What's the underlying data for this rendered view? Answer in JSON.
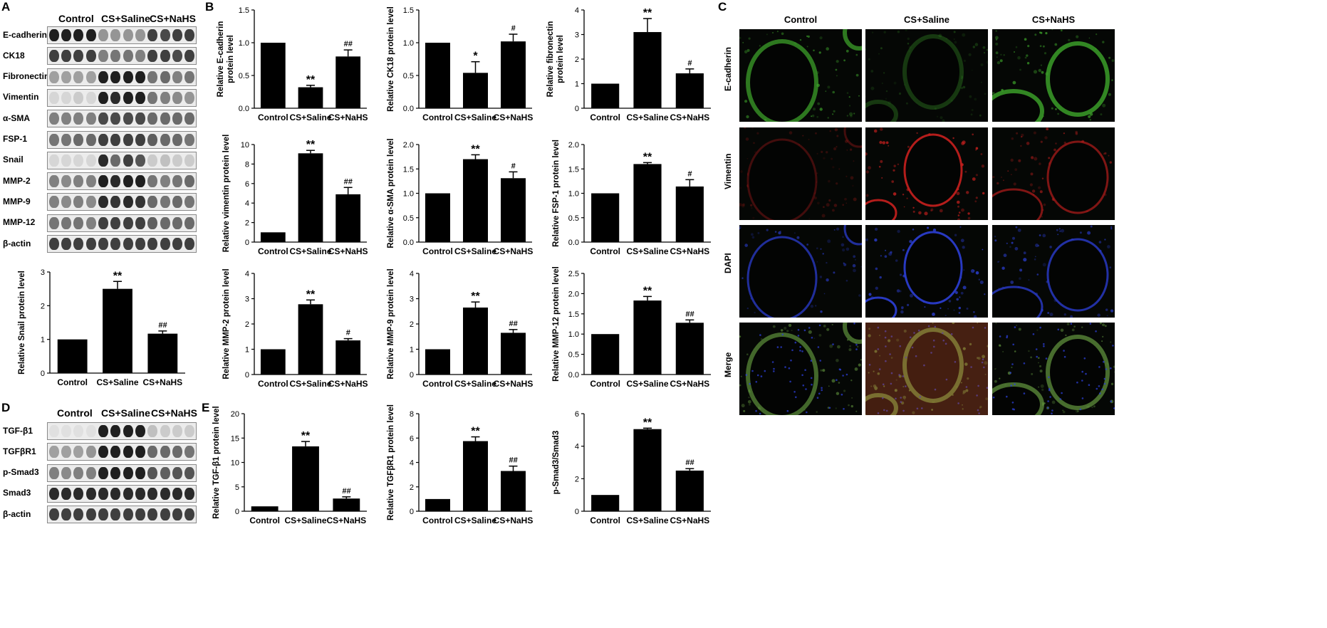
{
  "panels": {
    "A": "A",
    "B": "B",
    "C": "C",
    "D": "D",
    "E": "E"
  },
  "groups": [
    "Control",
    "CS+Saline",
    "CS+NaHS"
  ],
  "blotA": {
    "rows": [
      {
        "label": "E-cadherin",
        "pattern": [
          0.95,
          0.95,
          0.95,
          0.95,
          0.4,
          0.4,
          0.4,
          0.4,
          0.8,
          0.75,
          0.8,
          0.8
        ]
      },
      {
        "label": "CK18",
        "pattern": [
          0.8,
          0.8,
          0.8,
          0.8,
          0.5,
          0.55,
          0.55,
          0.5,
          0.8,
          0.8,
          0.75,
          0.8
        ]
      },
      {
        "label": "Fibronectin",
        "pattern": [
          0.35,
          0.35,
          0.35,
          0.35,
          0.95,
          0.95,
          0.95,
          0.95,
          0.55,
          0.6,
          0.5,
          0.55
        ]
      },
      {
        "label": "Vimentin",
        "pattern": [
          0.1,
          0.1,
          0.15,
          0.1,
          0.95,
          0.9,
          0.95,
          0.95,
          0.55,
          0.5,
          0.45,
          0.4
        ]
      },
      {
        "label": "α-SMA",
        "pattern": [
          0.5,
          0.5,
          0.5,
          0.5,
          0.75,
          0.75,
          0.75,
          0.75,
          0.6,
          0.6,
          0.6,
          0.6
        ]
      },
      {
        "label": "FSP-1",
        "pattern": [
          0.55,
          0.55,
          0.6,
          0.6,
          0.8,
          0.8,
          0.8,
          0.8,
          0.65,
          0.6,
          0.6,
          0.55
        ]
      },
      {
        "label": "Snail",
        "pattern": [
          0.1,
          0.1,
          0.1,
          0.1,
          0.9,
          0.6,
          0.8,
          0.7,
          0.15,
          0.2,
          0.15,
          0.15
        ]
      },
      {
        "label": "MMP-2",
        "pattern": [
          0.5,
          0.45,
          0.5,
          0.5,
          0.95,
          0.9,
          0.95,
          0.95,
          0.55,
          0.5,
          0.55,
          0.6
        ]
      },
      {
        "label": "MMP-9",
        "pattern": [
          0.5,
          0.45,
          0.5,
          0.45,
          0.9,
          0.85,
          0.9,
          0.85,
          0.6,
          0.55,
          0.6,
          0.55
        ]
      },
      {
        "label": "MMP-12",
        "pattern": [
          0.55,
          0.55,
          0.55,
          0.5,
          0.8,
          0.8,
          0.8,
          0.8,
          0.65,
          0.6,
          0.6,
          0.6
        ]
      },
      {
        "label": "β-actin",
        "pattern": [
          0.8,
          0.8,
          0.8,
          0.8,
          0.8,
          0.8,
          0.8,
          0.8,
          0.8,
          0.8,
          0.8,
          0.8
        ]
      }
    ]
  },
  "blotD": {
    "rows": [
      {
        "label": "TGF-β1",
        "pattern": [
          0.05,
          0.05,
          0.05,
          0.05,
          0.95,
          0.95,
          0.95,
          0.95,
          0.2,
          0.15,
          0.15,
          0.15
        ]
      },
      {
        "label": "TGFβR1",
        "pattern": [
          0.35,
          0.35,
          0.35,
          0.4,
          0.95,
          0.95,
          0.95,
          0.95,
          0.6,
          0.6,
          0.6,
          0.55
        ]
      },
      {
        "label": "p-Smad3",
        "pattern": [
          0.5,
          0.45,
          0.5,
          0.5,
          0.95,
          0.95,
          0.95,
          0.95,
          0.7,
          0.65,
          0.7,
          0.7
        ]
      },
      {
        "label": "Smad3",
        "pattern": [
          0.9,
          0.9,
          0.9,
          0.9,
          0.9,
          0.9,
          0.9,
          0.9,
          0.9,
          0.9,
          0.9,
          0.9
        ]
      },
      {
        "label": "β-actin",
        "pattern": [
          0.8,
          0.8,
          0.8,
          0.8,
          0.8,
          0.8,
          0.8,
          0.8,
          0.8,
          0.8,
          0.8,
          0.8
        ]
      }
    ]
  },
  "chart_data": [
    {
      "type": "bar",
      "panel": "A",
      "ylabel": "Relative Snail protein level",
      "categories": [
        "Control",
        "CS+Saline",
        "CS+NaHS"
      ],
      "values": [
        1,
        2.5,
        1.17
      ],
      "errors": [
        0,
        0.22,
        0.08
      ],
      "annotations": [
        "",
        "**",
        "##"
      ],
      "ylim": [
        0,
        3
      ],
      "yticks": [
        0,
        1,
        2,
        3
      ]
    },
    {
      "type": "bar",
      "panel": "B",
      "ylabel": "Relative E-cadherin\nprotein level",
      "categories": [
        "Control",
        "CS+Saline",
        "CS+NaHS"
      ],
      "values": [
        1,
        0.32,
        0.79
      ],
      "errors": [
        0,
        0.03,
        0.1
      ],
      "annotations": [
        "",
        "**",
        "##"
      ],
      "ylim": [
        0,
        1.5
      ],
      "yticks": [
        0.0,
        0.5,
        1.0,
        1.5
      ]
    },
    {
      "type": "bar",
      "panel": "B",
      "ylabel": "Relative CK18 protein level",
      "categories": [
        "Control",
        "CS+Saline",
        "CS+NaHS"
      ],
      "values": [
        1,
        0.54,
        1.02
      ],
      "errors": [
        0,
        0.17,
        0.11
      ],
      "annotations": [
        "",
        "*",
        "#"
      ],
      "ylim": [
        0,
        1.5
      ],
      "yticks": [
        0.0,
        0.5,
        1.0,
        1.5
      ]
    },
    {
      "type": "bar",
      "panel": "B",
      "ylabel": "Relative fibronectin\nprotein level",
      "categories": [
        "Control",
        "CS+Saline",
        "CS+NaHS"
      ],
      "values": [
        1,
        3.1,
        1.42
      ],
      "errors": [
        0,
        0.55,
        0.18
      ],
      "annotations": [
        "",
        "**",
        "#"
      ],
      "ylim": [
        0,
        4
      ],
      "yticks": [
        0,
        1,
        2,
        3,
        4
      ]
    },
    {
      "type": "bar",
      "panel": "B",
      "ylabel": "Relative vimentin protein level",
      "categories": [
        "Control",
        "CS+Saline",
        "CS+NaHS"
      ],
      "values": [
        1,
        9.1,
        4.9
      ],
      "errors": [
        0,
        0.3,
        0.7
      ],
      "annotations": [
        "",
        "**",
        "##"
      ],
      "ylim": [
        0,
        10
      ],
      "yticks": [
        0,
        2,
        4,
        6,
        8,
        10
      ]
    },
    {
      "type": "bar",
      "panel": "B",
      "ylabel": "Relative α-SMA protein level",
      "categories": [
        "Control",
        "CS+Saline",
        "CS+NaHS"
      ],
      "values": [
        1,
        1.7,
        1.31
      ],
      "errors": [
        0,
        0.09,
        0.13
      ],
      "annotations": [
        "",
        "**",
        "#"
      ],
      "ylim": [
        0,
        2
      ],
      "yticks": [
        0.0,
        0.5,
        1.0,
        1.5,
        2.0
      ]
    },
    {
      "type": "bar",
      "panel": "B",
      "ylabel": "Relative FSP-1 protein level",
      "categories": [
        "Control",
        "CS+Saline",
        "CS+NaHS"
      ],
      "values": [
        1,
        1.6,
        1.14
      ],
      "errors": [
        0,
        0.03,
        0.14
      ],
      "annotations": [
        "",
        "**",
        "#"
      ],
      "ylim": [
        0,
        2
      ],
      "yticks": [
        0.0,
        0.5,
        1.0,
        1.5,
        2.0
      ]
    },
    {
      "type": "bar",
      "panel": "B",
      "ylabel": "Relative MMP-2 protein level",
      "categories": [
        "Control",
        "CS+Saline",
        "CS+NaHS"
      ],
      "values": [
        1,
        2.78,
        1.35
      ],
      "errors": [
        0,
        0.17,
        0.07
      ],
      "annotations": [
        "",
        "**",
        "#"
      ],
      "ylim": [
        0,
        4
      ],
      "yticks": [
        0,
        1,
        2,
        3,
        4
      ]
    },
    {
      "type": "bar",
      "panel": "B",
      "ylabel": "Relative MMP-9 protein level",
      "categories": [
        "Control",
        "CS+Saline",
        "CS+NaHS"
      ],
      "values": [
        1,
        2.65,
        1.65
      ],
      "errors": [
        0,
        0.22,
        0.13
      ],
      "annotations": [
        "",
        "**",
        "##"
      ],
      "ylim": [
        0,
        4
      ],
      "yticks": [
        0,
        1,
        2,
        3,
        4
      ]
    },
    {
      "type": "bar",
      "panel": "B",
      "ylabel": "Relative MMP-12 protein level",
      "categories": [
        "Control",
        "CS+Saline",
        "CS+NaHS"
      ],
      "values": [
        1,
        1.83,
        1.28
      ],
      "errors": [
        0,
        0.1,
        0.07
      ],
      "annotations": [
        "",
        "**",
        "##"
      ],
      "ylim": [
        0,
        2.5
      ],
      "yticks": [
        0.0,
        0.5,
        1.0,
        1.5,
        2.0,
        2.5
      ]
    },
    {
      "type": "bar",
      "panel": "E",
      "ylabel": "Relative TGF-β1 protein level",
      "categories": [
        "Control",
        "CS+Saline",
        "CS+NaHS"
      ],
      "values": [
        1,
        13.3,
        2.6
      ],
      "errors": [
        0,
        1.0,
        0.35
      ],
      "annotations": [
        "",
        "**",
        "##"
      ],
      "ylim": [
        0,
        20
      ],
      "yticks": [
        0,
        5,
        10,
        15,
        20
      ]
    },
    {
      "type": "bar",
      "panel": "E",
      "ylabel": "Relative TGFβR1 protein level",
      "categories": [
        "Control",
        "CS+Saline",
        "CS+NaHS"
      ],
      "values": [
        1,
        5.75,
        3.3
      ],
      "errors": [
        0,
        0.35,
        0.4
      ],
      "annotations": [
        "",
        "**",
        "##"
      ],
      "ylim": [
        0,
        8
      ],
      "yticks": [
        0,
        2,
        4,
        6,
        8
      ]
    },
    {
      "type": "bar",
      "panel": "E",
      "ylabel": "p-Smad3/Smad3",
      "categories": [
        "Control",
        "CS+Saline",
        "CS+NaHS"
      ],
      "values": [
        1,
        5.05,
        2.5
      ],
      "errors": [
        0,
        0.06,
        0.12
      ],
      "annotations": [
        "",
        "**",
        "##"
      ],
      "ylim": [
        0,
        6
      ],
      "yticks": [
        0,
        2,
        4,
        6
      ]
    }
  ],
  "if_panel": {
    "columns": [
      "Control",
      "CS+Saline",
      "CS+NaHS"
    ],
    "rows": [
      {
        "label": "E-cadherin",
        "color": "#3ea52b"
      },
      {
        "label": "Vimentin",
        "color": "#c8201e"
      },
      {
        "label": "DAPI",
        "color": "#2c3fd6"
      },
      {
        "label": "Merge",
        "color": "#5c8d3a"
      }
    ]
  }
}
